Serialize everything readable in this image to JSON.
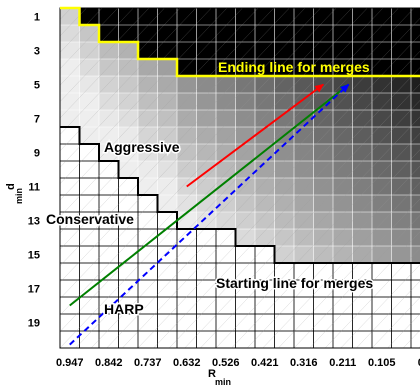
{
  "chart_data": {
    "type": "heatmap",
    "title": "",
    "xlabel": "R",
    "xlabel_sub": "min",
    "ylabel": "d",
    "ylabel_sub": "min",
    "rows": 20,
    "cols": 20,
    "xticks": [
      {
        "col": 1,
        "label": "0.947"
      },
      {
        "col": 3,
        "label": "0.842"
      },
      {
        "col": 5,
        "label": "0.737"
      },
      {
        "col": 7,
        "label": "0.632"
      },
      {
        "col": 9,
        "label": "0.526"
      },
      {
        "col": 11,
        "label": "0.421"
      },
      {
        "col": 13,
        "label": "0.316"
      },
      {
        "col": 15,
        "label": "0.211"
      },
      {
        "col": 17,
        "label": "0.105"
      },
      {
        "col": 19,
        "label": "0"
      }
    ],
    "yticks": [
      {
        "row": 1,
        "label": "1"
      },
      {
        "row": 3,
        "label": "3"
      },
      {
        "row": 5,
        "label": "5"
      },
      {
        "row": 7,
        "label": "7"
      },
      {
        "row": 9,
        "label": "9"
      },
      {
        "row": 11,
        "label": "11"
      },
      {
        "row": 13,
        "label": "13"
      },
      {
        "row": 15,
        "label": "15"
      },
      {
        "row": 17,
        "label": "17"
      },
      {
        "row": 19,
        "label": "19"
      }
    ],
    "ending_line_first_row": [
      1,
      2,
      3,
      3,
      4,
      4,
      5,
      5,
      5,
      5,
      5,
      5,
      5,
      5,
      5,
      5,
      5,
      5,
      5,
      5
    ],
    "starting_line_last_row": [
      7,
      8,
      9,
      10,
      11,
      12,
      13,
      13,
      13,
      14,
      14,
      15,
      15,
      15,
      15,
      15,
      15,
      15,
      15,
      15
    ],
    "annotations": {
      "ending_line": "Ending line for merges",
      "starting_line": "Starting line for merges",
      "aggressive": "Aggressive",
      "conservative": "Conservative",
      "harp": "HARP"
    },
    "arrows": [
      {
        "name": "Aggressive",
        "color": "#ff0000",
        "from": [
          6.5,
          10.5
        ],
        "to": [
          13.5,
          4.5
        ],
        "style": "solid"
      },
      {
        "name": "Conservative",
        "color": "#008000",
        "from": [
          0.5,
          17.5
        ],
        "to": [
          14.8,
          4.5
        ],
        "style": "solid"
      },
      {
        "name": "HARP",
        "color": "#0000ff",
        "from": [
          0.5,
          19.8
        ],
        "to": [
          14.8,
          4.5
        ],
        "style": "dashed"
      }
    ],
    "colors": {
      "ending_line": "#ffff00",
      "starting_line": "#000000",
      "grid": "#ffffff",
      "aggressive": "#ff0000",
      "conservative": "#008000",
      "harp": "#0000ff"
    },
    "grid": true,
    "legend": "none"
  }
}
